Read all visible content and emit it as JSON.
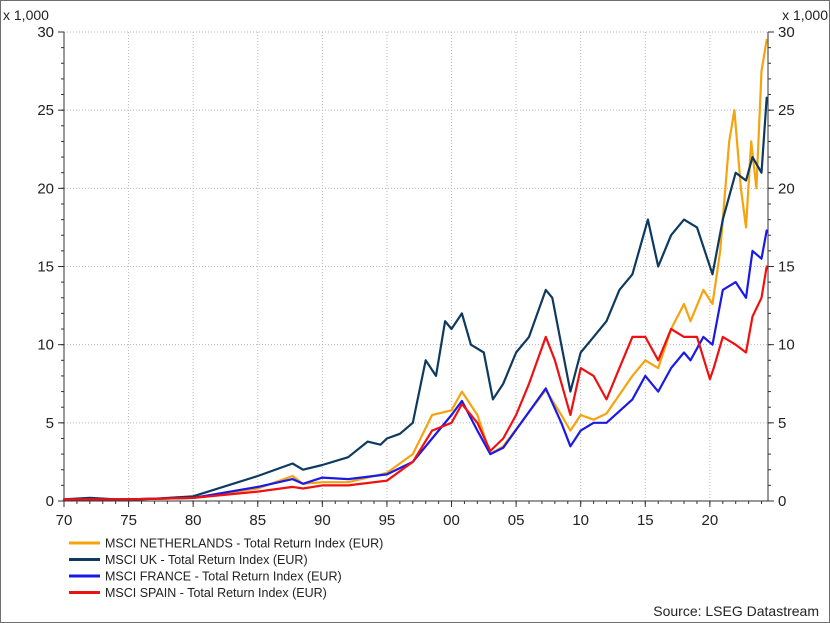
{
  "chart_data": {
    "type": "line",
    "title": "",
    "xlabel": "",
    "ylabel": "",
    "y_unit_left": "x 1,000",
    "y_unit_right": "x 1,000",
    "xlim": [
      1970,
      2024.5
    ],
    "ylim": [
      0,
      30
    ],
    "x_ticks": [
      1970,
      1975,
      1980,
      1985,
      1990,
      1995,
      2000,
      2005,
      2010,
      2015,
      2020
    ],
    "x_tick_labels": [
      "70",
      "75",
      "80",
      "85",
      "90",
      "95",
      "00",
      "05",
      "10",
      "15",
      "20"
    ],
    "y_ticks": [
      0,
      5,
      10,
      15,
      20,
      25,
      30
    ],
    "y_tick_labels": [
      "0",
      "5",
      "10",
      "15",
      "20",
      "25",
      "30"
    ],
    "grid": true,
    "legend_position": "bottom-left",
    "source": "Source: LSEG Datastream",
    "series": [
      {
        "name": "MSCI NETHERLANDS - Total Return Index (EUR)",
        "color": "#f5a30f",
        "x": [
          1970,
          1975,
          1980,
          1985,
          1987.7,
          1988.5,
          1990,
          1992,
          1995,
          1997,
          1998.5,
          2000,
          2000.8,
          2002,
          2003,
          2004,
          2007.3,
          2008.5,
          2009.2,
          2010,
          2011,
          2012,
          2014,
          2015,
          2016,
          2017,
          2018,
          2018.5,
          2019.5,
          2020.2,
          2020.8,
          2021.5,
          2021.9,
          2022.4,
          2022.8,
          2023.2,
          2023.6,
          2024,
          2024.4
        ],
        "y": [
          0.1,
          0.1,
          0.2,
          0.8,
          1.6,
          1.1,
          1.2,
          1.2,
          1.8,
          3.0,
          5.5,
          5.8,
          7.0,
          5.5,
          3.0,
          3.5,
          7.1,
          5.5,
          4.5,
          5.5,
          5.2,
          5.6,
          8.0,
          9.0,
          8.5,
          11.0,
          12.6,
          11.5,
          13.5,
          12.6,
          16.0,
          23.0,
          25.0,
          20.0,
          17.5,
          23.0,
          20.0,
          27.5,
          29.5
        ]
      },
      {
        "name": "MSCI UK - Total Return Index (EUR)",
        "color": "#0f3a5f",
        "x": [
          1970,
          1972,
          1974,
          1975,
          1977,
          1980,
          1985,
          1987.7,
          1988.5,
          1990,
          1992,
          1993.5,
          1994.5,
          1995,
          1996,
          1997,
          1998,
          1998.8,
          1999.5,
          2000,
          2000.8,
          2001.5,
          2002.5,
          2003.2,
          2004,
          2005,
          2006,
          2007.3,
          2007.8,
          2008.5,
          2009.2,
          2010,
          2011,
          2012,
          2013,
          2014,
          2015.2,
          2016,
          2017,
          2018,
          2019,
          2020.2,
          2021,
          2022,
          2022.8,
          2023.3,
          2024,
          2024.4
        ],
        "y": [
          0.1,
          0.2,
          0.1,
          0.1,
          0.15,
          0.3,
          1.6,
          2.4,
          2.0,
          2.3,
          2.8,
          3.8,
          3.6,
          4.0,
          4.3,
          5.0,
          9.0,
          8.0,
          11.5,
          11.0,
          12.0,
          10.0,
          9.5,
          6.5,
          7.5,
          9.5,
          10.5,
          13.5,
          13.0,
          10.0,
          7.0,
          9.5,
          10.5,
          11.5,
          13.5,
          14.5,
          18.0,
          15.0,
          17.0,
          18.0,
          17.5,
          14.5,
          18.0,
          21.0,
          20.5,
          22.0,
          21.0,
          25.8
        ]
      },
      {
        "name": "MSCI FRANCE - Total Return Index (EUR)",
        "color": "#1a1ae8",
        "x": [
          1970,
          1975,
          1980,
          1985,
          1987.7,
          1988.5,
          1990,
          1992,
          1995,
          1997,
          1998.5,
          2000,
          2000.8,
          2002,
          2003,
          2004,
          2007.3,
          2008.5,
          2009.2,
          2010,
          2011,
          2012,
          2014,
          2015,
          2016,
          2017,
          2018,
          2018.5,
          2019.5,
          2020.2,
          2021,
          2022,
          2022.8,
          2023.3,
          2024,
          2024.4
        ],
        "y": [
          0.1,
          0.1,
          0.2,
          0.9,
          1.4,
          1.1,
          1.5,
          1.4,
          1.7,
          2.5,
          4.0,
          5.5,
          6.4,
          4.5,
          3.0,
          3.4,
          7.2,
          5.0,
          3.5,
          4.5,
          5.0,
          5.0,
          6.5,
          8.0,
          7.0,
          8.5,
          9.5,
          9.0,
          10.5,
          10.0,
          13.5,
          14.0,
          13.0,
          16.0,
          15.5,
          17.3
        ]
      },
      {
        "name": "MSCI SPAIN - Total Return Index (EUR)",
        "color": "#ee1111",
        "x": [
          1970,
          1975,
          1980,
          1985,
          1987.7,
          1988.5,
          1990,
          1992,
          1995,
          1997,
          1998.5,
          2000,
          2000.8,
          2002,
          2003,
          2004,
          2005,
          2006,
          2007.3,
          2008,
          2009.2,
          2010,
          2011,
          2012,
          2013,
          2014,
          2015,
          2016,
          2017,
          2018,
          2019,
          2020,
          2020.3,
          2021,
          2022,
          2022.8,
          2023.3,
          2024,
          2024.4
        ],
        "y": [
          0.1,
          0.1,
          0.2,
          0.6,
          0.9,
          0.8,
          1.0,
          1.0,
          1.3,
          2.5,
          4.5,
          5.0,
          6.2,
          5.0,
          3.2,
          4.0,
          5.5,
          7.5,
          10.5,
          9.0,
          5.5,
          8.5,
          8.0,
          6.5,
          8.5,
          10.5,
          10.5,
          9.0,
          11.0,
          10.5,
          10.5,
          7.8,
          8.5,
          10.5,
          10.0,
          9.5,
          11.8,
          13.0,
          15.0
        ]
      }
    ]
  }
}
